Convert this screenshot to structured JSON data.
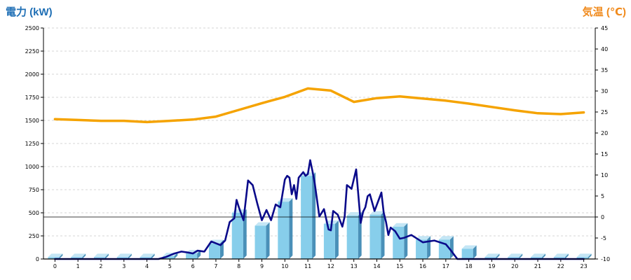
{
  "chart_data": {
    "type": "bar+line",
    "left_axis": {
      "label": "電力 (kW)",
      "color": "#1f6fb5",
      "range": [
        0,
        2500
      ],
      "ticks": [
        0,
        250,
        500,
        750,
        1000,
        1250,
        1500,
        1750,
        2000,
        2250,
        2500
      ]
    },
    "right_axis": {
      "label": "気温 (℃)",
      "color": "#f08a1c",
      "range": [
        -10,
        45
      ],
      "ticks": [
        -10,
        -5,
        0,
        5,
        10,
        15,
        20,
        25,
        30,
        35,
        40,
        45
      ]
    },
    "x_axis": {
      "categories": [
        0,
        1,
        2,
        3,
        4,
        5,
        6,
        7,
        8,
        9,
        10,
        11,
        12,
        13,
        14,
        15,
        16,
        17,
        18,
        19,
        20,
        21,
        22,
        23
      ]
    },
    "grid": "horizontal-dashed",
    "reference_line": {
      "axis": "right",
      "value": 0
    },
    "bar_color": "#87ceeb",
    "power_line_color": "#0a0a8a",
    "temp_line_color": "#f5a300",
    "series": [
      {
        "kind": "bar",
        "axis": "left",
        "values": [
          20,
          20,
          20,
          20,
          20,
          30,
          60,
          170,
          500,
          360,
          620,
          900,
          380,
          470,
          480,
          350,
          210,
          210,
          110,
          20,
          20,
          20,
          20,
          20
        ]
      },
      {
        "kind": "line",
        "axis": "left",
        "x": [
          0,
          0.3,
          0.7,
          1,
          1.5,
          2,
          2.5,
          3,
          3.5,
          4,
          4.5,
          4.8,
          5,
          5.2,
          5.5,
          5.8,
          6,
          6.2,
          6.5,
          6.8,
          7,
          7.2,
          7.4,
          7.6,
          7.8,
          7.9,
          8,
          8.2,
          8.4,
          8.6,
          8.8,
          9,
          9.2,
          9.4,
          9.6,
          9.8,
          10,
          10.1,
          10.2,
          10.3,
          10.4,
          10.5,
          10.6,
          10.8,
          10.9,
          11,
          11.1,
          11.2,
          11.3,
          11.5,
          11.7,
          11.9,
          12,
          12.1,
          12.3,
          12.5,
          12.6,
          12.7,
          12.9,
          13.1,
          13.3,
          13.4,
          13.5,
          13.6,
          13.7,
          13.9,
          14.2,
          14.3,
          14.4,
          14.5,
          14.6,
          14.8,
          15,
          15.2,
          15.5,
          16,
          16.5,
          17,
          17.2,
          17.5,
          17.8,
          18,
          18.5,
          19,
          20,
          21,
          22,
          23
        ],
        "values": [
          0,
          0,
          0,
          0,
          0,
          0,
          0,
          0,
          0,
          0,
          0,
          20,
          40,
          60,
          80,
          70,
          60,
          90,
          80,
          190,
          170,
          150,
          200,
          400,
          440,
          640,
          560,
          420,
          850,
          800,
          600,
          420,
          530,
          420,
          590,
          560,
          860,
          900,
          880,
          700,
          800,
          650,
          880,
          940,
          900,
          920,
          1070,
          950,
          820,
          460,
          540,
          320,
          310,
          520,
          480,
          350,
          460,
          800,
          760,
          970,
          390,
          510,
          560,
          680,
          700,
          520,
          720,
          500,
          400,
          260,
          340,
          300,
          220,
          230,
          260,
          180,
          200,
          160,
          100,
          0,
          0,
          0,
          0,
          0,
          0,
          0,
          0,
          0
        ]
      },
      {
        "kind": "line",
        "axis": "right",
        "x": [
          0,
          1,
          2,
          3,
          4,
          5,
          6,
          7,
          8,
          9,
          10,
          11,
          12,
          13,
          14,
          15,
          16,
          17,
          18,
          19,
          20,
          21,
          22,
          23
        ],
        "values": [
          23.3,
          23.1,
          22.9,
          22.9,
          22.6,
          22.9,
          23.2,
          23.9,
          25.5,
          27.1,
          28.6,
          30.6,
          30.1,
          27.4,
          28.3,
          28.7,
          28.2,
          27.7,
          27.0,
          26.2,
          25.4,
          24.7,
          24.5,
          24.9
        ]
      }
    ]
  }
}
